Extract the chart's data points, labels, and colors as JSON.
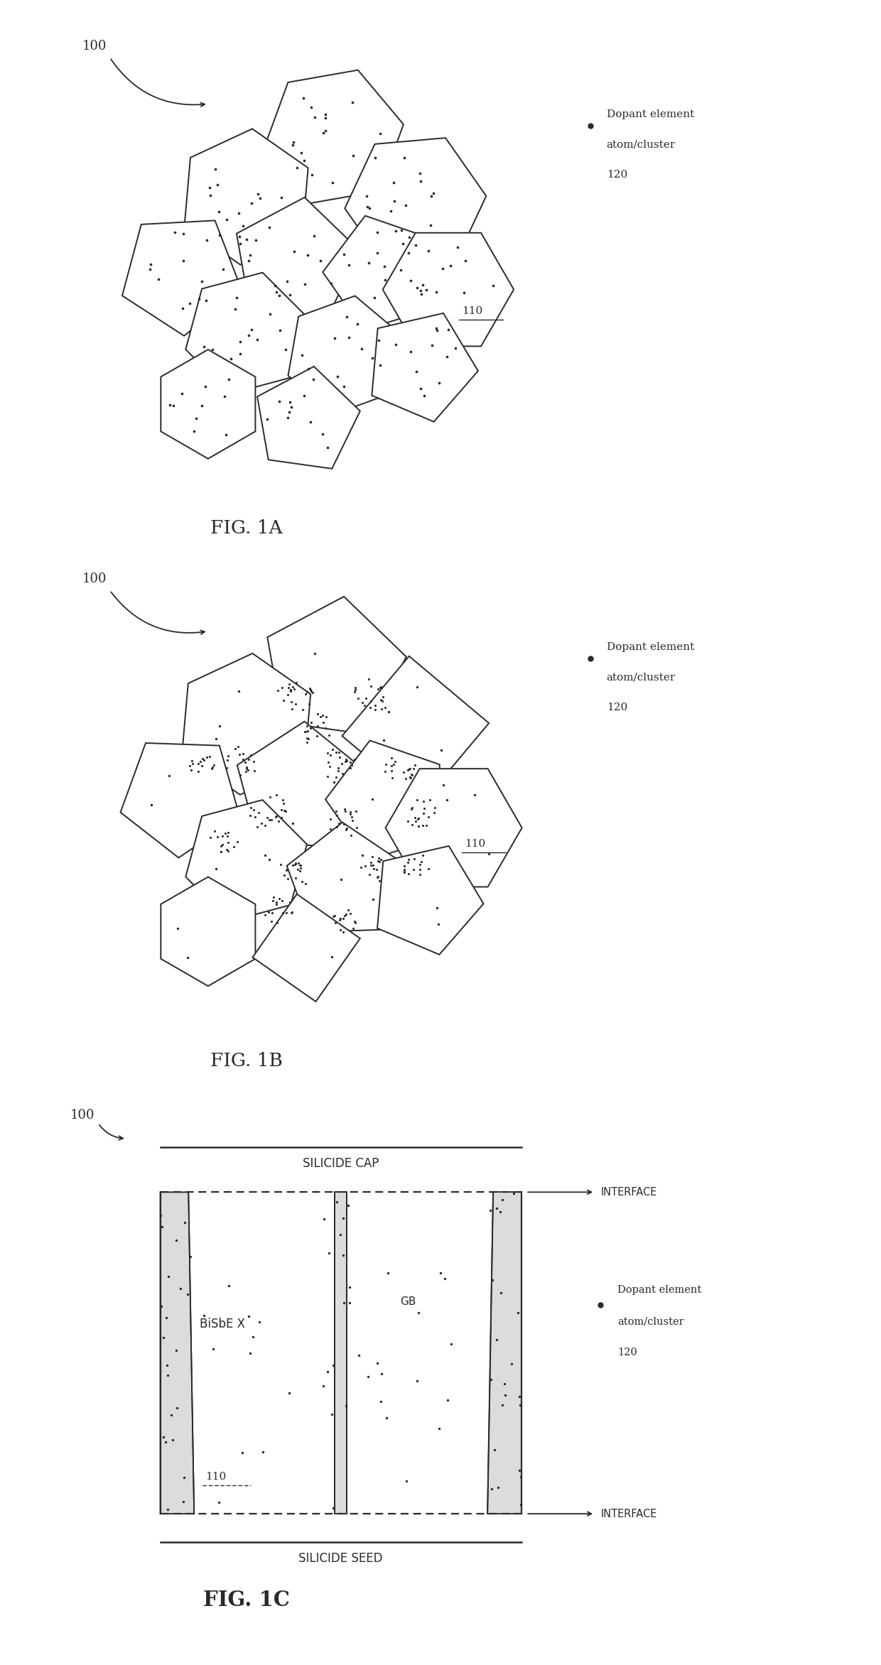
{
  "fig_width": 12.4,
  "fig_height": 23.44,
  "bg_color": "#ffffff",
  "line_color": "#2a2a2a",
  "dot_color": "#2a2a2a",
  "dopant_label_line1": "Dopant element",
  "dopant_label_line2": "atom/cluster",
  "dopant_label_line3": "120",
  "figA_label": "FIG. 1A",
  "figB_label": "FIG. 1B",
  "figC_label": "FIG. 1C",
  "silicide_cap": "SILICIDE CAP",
  "silicide_seed": "SILICIDE SEED",
  "bisbex": "BiSbE X",
  "gb_label": "GB",
  "interface_label": "INTERFACE",
  "label_100": "100",
  "label_110": "110"
}
